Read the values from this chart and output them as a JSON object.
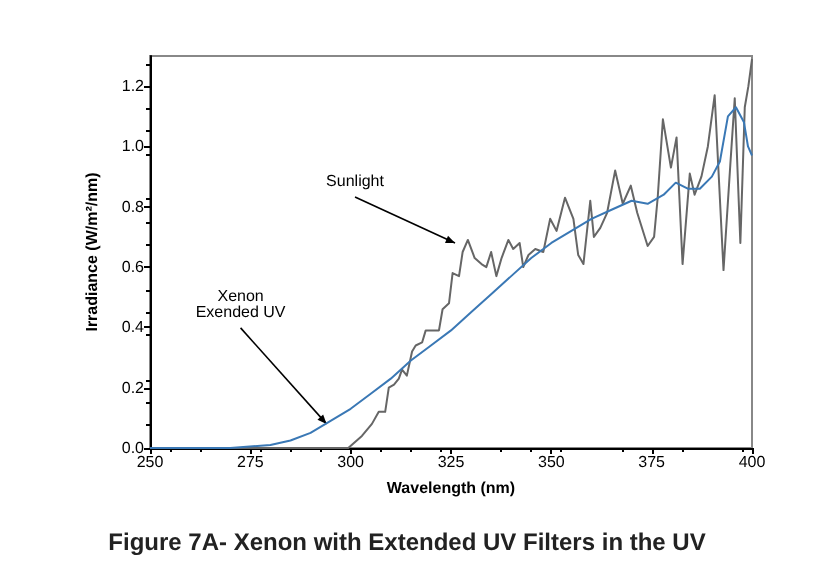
{
  "chart_data": {
    "type": "line",
    "title": "Figure 7A- Xenon with Extended UV Filters in the UV",
    "xlabel": "Wavelength (nm)",
    "ylabel": "Irradiance (W/m²/nm)",
    "annotations": [
      {
        "text": "Sunlight",
        "x": 326,
        "y": 0.68
      },
      {
        "text": "Xenon\nExended UV",
        "x": 294,
        "y": 0.08
      }
    ],
    "series": [
      {
        "color": "#666666",
        "x": [
          250,
          299.4,
          302.8,
          305.3,
          307,
          308.6,
          309.5,
          310.8,
          312,
          312.8,
          314,
          315.3,
          316.2,
          317.8,
          318.7,
          320.4,
          322,
          322.9,
          324.5,
          325.4,
          327,
          327.9,
          329.2,
          330.9,
          332.6,
          333.8,
          335,
          336.3,
          337.6,
          339.3,
          340.5,
          342.1,
          343,
          344.3,
          346,
          348,
          349.7,
          351.3,
          353.4,
          355.5,
          356.7,
          358,
          359.7,
          360.6,
          362.2,
          363.9,
          365.9,
          367.8,
          369.8,
          371.4,
          374,
          375.6,
          376.5,
          377.8,
          379.8,
          381.2,
          382.7,
          384.5,
          385.7,
          387.4,
          389,
          390.7,
          392.9,
          394.6,
          395.7,
          397.1,
          398.2,
          399.1,
          400
        ],
        "values": [
          0,
          0,
          0.04,
          0.08,
          0.12,
          0.12,
          0.2,
          0.21,
          0.23,
          0.26,
          0.24,
          0.32,
          0.34,
          0.35,
          0.39,
          0.39,
          0.39,
          0.46,
          0.48,
          0.58,
          0.57,
          0.65,
          0.69,
          0.63,
          0.61,
          0.6,
          0.65,
          0.57,
          0.63,
          0.69,
          0.66,
          0.68,
          0.6,
          0.64,
          0.66,
          0.65,
          0.76,
          0.72,
          0.83,
          0.76,
          0.64,
          0.61,
          0.82,
          0.7,
          0.73,
          0.78,
          0.92,
          0.81,
          0.87,
          0.78,
          0.67,
          0.7,
          0.83,
          1.09,
          0.93,
          1.03,
          0.61,
          0.91,
          0.84,
          0.9,
          1,
          1.17,
          0.59,
          0.94,
          1.16,
          0.68,
          1.13,
          1.2,
          1.29
        ]
      },
      {
        "color": "#3a78b5",
        "x": [
          250,
          270,
          280,
          285,
          290,
          295,
          300,
          305,
          310,
          315,
          320,
          325,
          330,
          335,
          340,
          345,
          350,
          355,
          360,
          365,
          370,
          374,
          378,
          381,
          384,
          387,
          390,
          392,
          394,
          396,
          398,
          399,
          400
        ],
        "values": [
          0,
          0,
          0.01,
          0.025,
          0.05,
          0.09,
          0.13,
          0.18,
          0.23,
          0.29,
          0.34,
          0.39,
          0.45,
          0.51,
          0.57,
          0.63,
          0.68,
          0.72,
          0.76,
          0.79,
          0.82,
          0.81,
          0.84,
          0.88,
          0.86,
          0.86,
          0.9,
          0.95,
          1.1,
          1.13,
          1.08,
          1,
          0.97
        ]
      }
    ],
    "xlim": [
      250,
      400
    ],
    "xticks": [
      250,
      275,
      300,
      325,
      350,
      375,
      400
    ],
    "ylim": [
      0,
      1.3
    ],
    "yticks": [
      {
        "value": 0,
        "label": "0.0"
      },
      {
        "value": 0.2,
        "label": "0.2"
      },
      {
        "value": 0.4,
        "label": "0.4"
      },
      {
        "value": 0.6,
        "label": "0.6"
      },
      {
        "value": 0.8,
        "label": "0.8"
      },
      {
        "value": 1,
        "label": "1.0"
      },
      {
        "value": 1.2,
        "label": "1.2"
      }
    ],
    "grid": false,
    "marker": "none",
    "line_style": "solid"
  }
}
